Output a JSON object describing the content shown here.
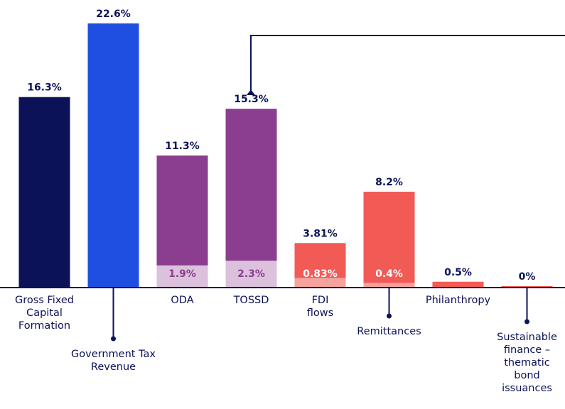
{
  "chart_data": {
    "type": "bar",
    "categories": [
      "Gross Fixed Capital Formation",
      "Government Tax Revenue",
      "ODA",
      "TOSSD",
      "FDI flows",
      "Remittances",
      "Philanthropy",
      "Sustainable finance – thematic bond issuances"
    ],
    "series": [
      {
        "colors": [
          "#0b1257",
          "#1f4fe0",
          "#8b3e8f",
          "#8b3e8f",
          "#f25a55",
          "#f25a55",
          "#f25a55",
          "#f25a55"
        ],
        "values": [
          16.3,
          22.6,
          11.3,
          15.3,
          3.81,
          8.2,
          0.5,
          0
        ],
        "value_labels": [
          "16.3%",
          "22.6%",
          "11.3%",
          "15.3%",
          "3.81%",
          "8.2%",
          "0.5%",
          "0%"
        ]
      },
      {
        "colors": [
          null,
          null,
          "#dcc1dd",
          "#dcc1dd",
          "#f6a39d",
          "#f6a39d",
          null,
          null
        ],
        "label_colors": [
          null,
          null,
          "#8b3e8f",
          "#8b3e8f",
          "#ffffff",
          "#ffffff",
          null,
          null
        ],
        "values": [
          null,
          null,
          1.9,
          2.3,
          0.83,
          0.4,
          null,
          null
        ],
        "value_labels": [
          null,
          null,
          "1.9%",
          "2.3%",
          "0.83%",
          "0.4%",
          null,
          null
        ]
      }
    ]
  }
}
